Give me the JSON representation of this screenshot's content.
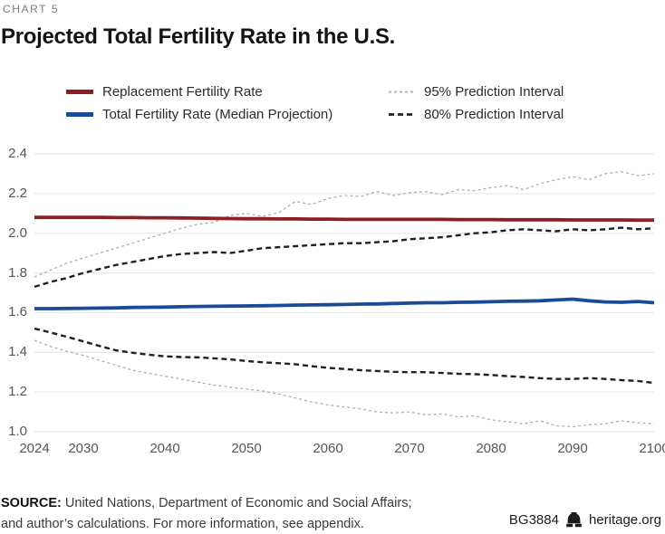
{
  "header": {
    "kicker": "CHART 5",
    "title": "Projected Total Fertility Rate in the U.S."
  },
  "legend": {
    "items": [
      {
        "label": "Replacement Fertility Rate",
        "series_index": 0
      },
      {
        "label": "Total Fertility Rate (Median Projection)",
        "series_index": 1
      },
      {
        "label": "95% Prediction Interval",
        "series_index": 2
      },
      {
        "label": "80% Prediction Interval",
        "series_index": 3
      }
    ]
  },
  "chart_data": {
    "type": "line",
    "title": "Projected Total Fertility Rate in the U.S.",
    "xlabel": "",
    "ylabel": "",
    "xlim": [
      2024,
      2100
    ],
    "ylim": [
      1.0,
      2.4
    ],
    "grid": "horizontal",
    "gridline_color": "#e3e3e3",
    "xticks": [
      2024,
      2030,
      2040,
      2050,
      2060,
      2070,
      2080,
      2090,
      2100
    ],
    "yticks": [
      2.4,
      2.2,
      2.0,
      1.8,
      1.6,
      1.4,
      1.2,
      1.0
    ],
    "x": [
      2024,
      2026,
      2028,
      2030,
      2032,
      2034,
      2036,
      2038,
      2040,
      2042,
      2044,
      2046,
      2048,
      2050,
      2052,
      2054,
      2056,
      2058,
      2060,
      2062,
      2064,
      2066,
      2068,
      2070,
      2072,
      2074,
      2076,
      2078,
      2080,
      2082,
      2084,
      2086,
      2088,
      2090,
      2092,
      2094,
      2096,
      2098,
      2100
    ],
    "series": [
      {
        "name": "Replacement Fertility Rate",
        "style": "solid",
        "color": "#8f1e22",
        "stroke_width": 3.8,
        "dash": "",
        "values": [
          2.08,
          2.08,
          2.08,
          2.08,
          2.08,
          2.079,
          2.079,
          2.078,
          2.078,
          2.077,
          2.076,
          2.075,
          2.074,
          2.073,
          2.073,
          2.072,
          2.072,
          2.071,
          2.071,
          2.07,
          2.07,
          2.07,
          2.07,
          2.07,
          2.07,
          2.07,
          2.069,
          2.069,
          2.069,
          2.068,
          2.068,
          2.068,
          2.068,
          2.067,
          2.067,
          2.067,
          2.067,
          2.066,
          2.066
        ]
      },
      {
        "name": "Total Fertility Rate (Median Projection)",
        "style": "solid",
        "color": "#1b4b98",
        "stroke_width": 3.8,
        "dash": "",
        "values": [
          1.62,
          1.62,
          1.621,
          1.622,
          1.623,
          1.624,
          1.626,
          1.627,
          1.628,
          1.63,
          1.631,
          1.632,
          1.633,
          1.634,
          1.635,
          1.636,
          1.638,
          1.639,
          1.64,
          1.641,
          1.643,
          1.644,
          1.646,
          1.648,
          1.65,
          1.65,
          1.652,
          1.653,
          1.655,
          1.657,
          1.658,
          1.66,
          1.664,
          1.668,
          1.66,
          1.654,
          1.652,
          1.656,
          1.65
        ]
      },
      {
        "name": "95% Prediction Interval",
        "style": "dashed",
        "color": "#adadad",
        "stroke_width": 1.3,
        "dash": "3 3",
        "values_upper": [
          1.78,
          1.815,
          1.85,
          1.875,
          1.9,
          1.925,
          1.95,
          1.975,
          2.0,
          2.025,
          2.045,
          2.055,
          2.09,
          2.1,
          2.085,
          2.105,
          2.16,
          2.145,
          2.175,
          2.19,
          2.185,
          2.21,
          2.19,
          2.205,
          2.21,
          2.195,
          2.22,
          2.215,
          2.23,
          2.24,
          2.22,
          2.25,
          2.27,
          2.285,
          2.27,
          2.3,
          2.31,
          2.29,
          2.3
        ],
        "values_lower": [
          1.46,
          1.43,
          1.405,
          1.385,
          1.36,
          1.335,
          1.31,
          1.295,
          1.28,
          1.265,
          1.25,
          1.235,
          1.225,
          1.215,
          1.205,
          1.19,
          1.17,
          1.15,
          1.135,
          1.125,
          1.115,
          1.1,
          1.095,
          1.1,
          1.085,
          1.09,
          1.075,
          1.08,
          1.06,
          1.05,
          1.04,
          1.055,
          1.03,
          1.025,
          1.035,
          1.04,
          1.055,
          1.045,
          1.04
        ]
      },
      {
        "name": "80% Prediction Interval",
        "style": "dashed",
        "color": "#1f1f1f",
        "stroke_width": 2.4,
        "dash": "6 4",
        "values_upper": [
          1.73,
          1.755,
          1.775,
          1.8,
          1.82,
          1.84,
          1.855,
          1.87,
          1.885,
          1.895,
          1.9,
          1.905,
          1.9,
          1.912,
          1.925,
          1.93,
          1.935,
          1.94,
          1.945,
          1.95,
          1.95,
          1.955,
          1.96,
          1.97,
          1.975,
          1.98,
          1.99,
          2.0,
          2.005,
          2.015,
          2.02,
          2.015,
          2.01,
          2.02,
          2.015,
          2.02,
          2.028,
          2.02,
          2.025
        ],
        "values_lower": [
          1.52,
          1.5,
          1.478,
          1.455,
          1.432,
          1.41,
          1.398,
          1.388,
          1.38,
          1.376,
          1.375,
          1.37,
          1.365,
          1.356,
          1.35,
          1.345,
          1.34,
          1.33,
          1.322,
          1.316,
          1.31,
          1.306,
          1.302,
          1.3,
          1.3,
          1.296,
          1.292,
          1.29,
          1.286,
          1.28,
          1.276,
          1.27,
          1.266,
          1.266,
          1.27,
          1.266,
          1.26,
          1.256,
          1.246
        ]
      }
    ]
  },
  "footer": {
    "source_label": "SOURCE:",
    "source_line1_rest": " United Nations, Department of Economic and Social Affairs;",
    "source_line2": "and author’s calculations. For more information, see appendix.",
    "doc_id": "BG3884",
    "site": "heritage.org",
    "bell_icon": "liberty-bell-icon"
  }
}
